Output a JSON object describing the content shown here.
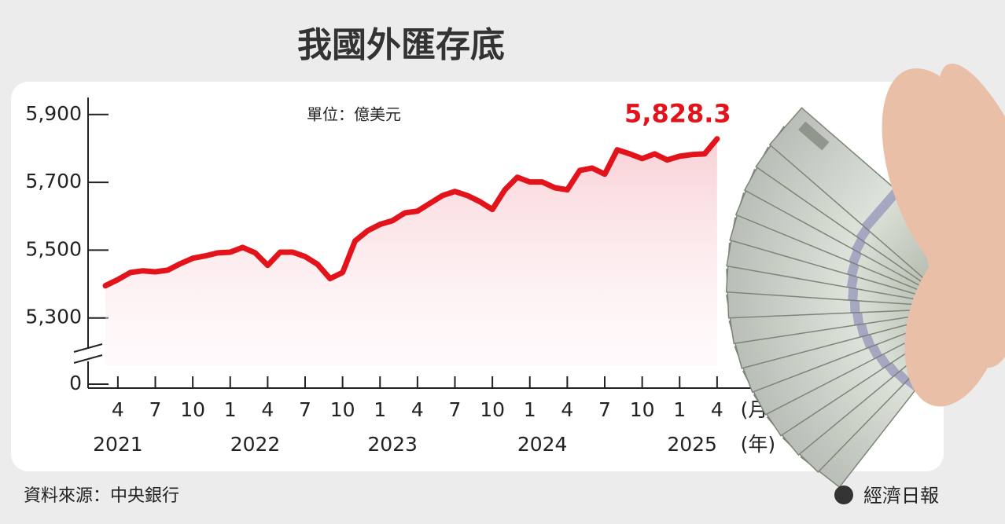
{
  "chart_data": {
    "type": "line",
    "title": "我國外匯存底",
    "unit_label": "單位：億美元",
    "categories": [
      null,
      "4",
      null,
      null,
      "7",
      null,
      null,
      "10",
      null,
      null,
      "1",
      null,
      null,
      "4",
      null,
      null,
      "7",
      null,
      null,
      "10",
      null,
      null,
      "1",
      null,
      null,
      "4",
      null,
      null,
      "7",
      null,
      null,
      "10",
      null,
      null,
      "1",
      null,
      null,
      "4",
      null,
      null,
      "7",
      null,
      null,
      "10",
      null,
      null,
      "1",
      null,
      null,
      "4"
    ],
    "year_categories": [
      null,
      "2021",
      null,
      null,
      null,
      null,
      null,
      null,
      null,
      null,
      null,
      null,
      "2022",
      null,
      null,
      null,
      null,
      null,
      null,
      null,
      null,
      null,
      null,
      "2023",
      null,
      null,
      null,
      null,
      null,
      null,
      null,
      null,
      null,
      null,
      null,
      "2024",
      null,
      null,
      null,
      null,
      null,
      null,
      null,
      null,
      null,
      null,
      null,
      "2025",
      null,
      null
    ],
    "x_unit_month": "(月)",
    "x_unit_year": "(年)",
    "values": [
      5395,
      5413,
      5434,
      5439,
      5436,
      5441,
      5460,
      5476,
      5483,
      5492,
      5494,
      5508,
      5492,
      5455,
      5494,
      5494,
      5481,
      5458,
      5416,
      5434,
      5527,
      5557,
      5576,
      5587,
      5610,
      5615,
      5638,
      5661,
      5673,
      5661,
      5643,
      5620,
      5678,
      5715,
      5701,
      5701,
      5684,
      5678,
      5735,
      5742,
      5724,
      5796,
      5784,
      5770,
      5784,
      5766,
      5777,
      5782,
      5784,
      5828.3
    ],
    "value_labels": [
      null,
      null,
      null,
      null,
      null,
      null,
      null,
      null,
      null,
      null,
      null,
      null,
      null,
      null,
      null,
      null,
      null,
      null,
      null,
      null,
      null,
      null,
      null,
      null,
      null,
      null,
      null,
      null,
      null,
      null,
      null,
      null,
      null,
      null,
      null,
      null,
      null,
      null,
      null,
      null,
      null,
      null,
      null,
      null,
      null,
      null,
      null,
      null,
      null,
      "5,828.3"
    ],
    "color": "#e2131b",
    "ylim": [
      5100,
      5950
    ],
    "yticks": [
      {
        "value": 5900,
        "label": "5,900"
      },
      {
        "value": 5700,
        "label": "5,700"
      },
      {
        "value": 5500,
        "label": "5,500"
      },
      {
        "value": 5300,
        "label": "5,300"
      },
      0
    ],
    "axis_break": true,
    "source": "資料來源：中央銀行",
    "publisher": "經濟日報"
  }
}
